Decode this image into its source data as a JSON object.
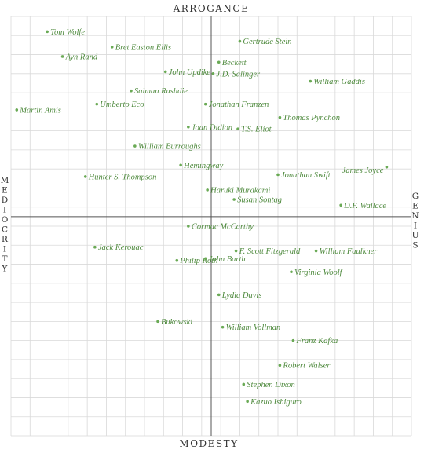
{
  "chart_data": {
    "type": "scatter",
    "title": "",
    "axis_labels": {
      "top": "ARROGANCE",
      "bottom": "MODESTY",
      "left": "MEDIOCRITY",
      "right": "GENIUS"
    },
    "xlim": [
      -5.25,
      5.25
    ],
    "ylim": [
      -5.75,
      5.25
    ],
    "grid": true,
    "colors": {
      "points": "#6aaa55",
      "labels": "#4f8a3e",
      "grid": "#d9d9d9",
      "axes": "#555555"
    },
    "points": [
      {
        "name": "Tom Wolfe",
        "x": -4.3,
        "y": 4.85
      },
      {
        "name": "Bret Easton Ellis",
        "x": -2.6,
        "y": 4.45
      },
      {
        "name": "Ayn Rand",
        "x": -3.9,
        "y": 4.2
      },
      {
        "name": "Gertrude Stein",
        "x": 0.75,
        "y": 4.6
      },
      {
        "name": "Beckett",
        "x": 0.2,
        "y": 4.05
      },
      {
        "name": "John Updike",
        "x": -1.2,
        "y": 3.8
      },
      {
        "name": "J.D. Salinger",
        "x": 0.05,
        "y": 3.75
      },
      {
        "name": "William Gaddis",
        "x": 2.6,
        "y": 3.55
      },
      {
        "name": "Salman Rushdie",
        "x": -2.1,
        "y": 3.3
      },
      {
        "name": "Umberto Eco",
        "x": -3.0,
        "y": 2.95
      },
      {
        "name": "Martin Amis",
        "x": -5.1,
        "y": 2.8
      },
      {
        "name": "Jonathan Franzen",
        "x": -0.15,
        "y": 2.95
      },
      {
        "name": "Thomas Pynchon",
        "x": 1.8,
        "y": 2.6
      },
      {
        "name": "Joan Didion",
        "x": -0.6,
        "y": 2.35
      },
      {
        "name": "T.S. Eliot",
        "x": 0.7,
        "y": 2.3
      },
      {
        "name": "William Burroughs",
        "x": -2.0,
        "y": 1.85
      },
      {
        "name": "Hemingway",
        "x": -0.8,
        "y": 1.35
      },
      {
        "name": "James Joyce",
        "x": 4.6,
        "y": 1.3
      },
      {
        "name": "Hunter S. Thompson",
        "x": -3.3,
        "y": 1.05
      },
      {
        "name": "Jonathan Swift",
        "x": 1.75,
        "y": 1.1
      },
      {
        "name": "Haruki Murakami",
        "x": -0.1,
        "y": 0.7
      },
      {
        "name": "Susan Sontag",
        "x": 0.6,
        "y": 0.45
      },
      {
        "name": "D.F. Wallace",
        "x": 3.4,
        "y": 0.3
      },
      {
        "name": "Cormac McCarthy",
        "x": -0.6,
        "y": -0.25
      },
      {
        "name": "Jack Kerouac",
        "x": -3.05,
        "y": -0.8
      },
      {
        "name": "F. Scott Fitzgerald",
        "x": 0.65,
        "y": -0.9
      },
      {
        "name": "William Faulkner",
        "x": 2.75,
        "y": -0.9
      },
      {
        "name": "Philip Roth",
        "x": -0.9,
        "y": -1.15
      },
      {
        "name": "John Barth",
        "x": -0.15,
        "y": -1.1
      },
      {
        "name": "Virginia Woolf",
        "x": 2.1,
        "y": -1.45
      },
      {
        "name": "Lydia Davis",
        "x": 0.2,
        "y": -2.05
      },
      {
        "name": "Bukowski",
        "x": -1.4,
        "y": -2.75
      },
      {
        "name": "William Vollman",
        "x": 0.3,
        "y": -2.9
      },
      {
        "name": "Franz Kafka",
        "x": 2.15,
        "y": -3.25
      },
      {
        "name": "Robert Walser",
        "x": 1.8,
        "y": -3.9
      },
      {
        "name": "Stephen Dixon",
        "x": 0.85,
        "y": -4.4
      },
      {
        "name": "Kazuo Ishiguro",
        "x": 0.95,
        "y": -4.85
      }
    ]
  }
}
